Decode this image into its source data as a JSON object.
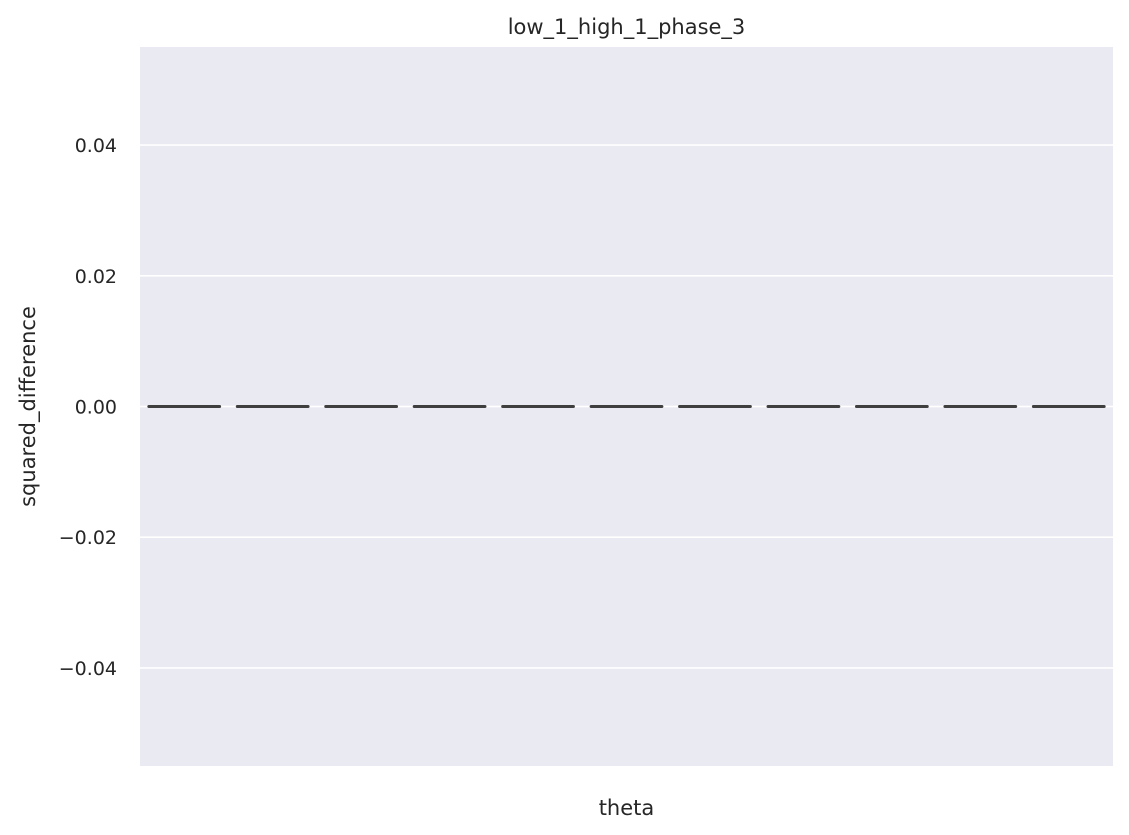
{
  "chart_data": {
    "type": "box",
    "title": "low_1_high_1_phase_3",
    "xlabel": "theta",
    "ylabel": "squared_difference",
    "ylim": [
      -0.055,
      0.055
    ],
    "yticks": [
      -0.04,
      -0.02,
      0.0,
      0.02,
      0.04
    ],
    "ytick_labels": [
      "−0.04",
      "−0.02",
      "0.00",
      "0.02",
      "0.04"
    ],
    "grid": true,
    "categories": [
      "",
      "",
      "",
      "",
      "",
      "",
      "",
      "",
      "",
      "",
      ""
    ],
    "boxes": [
      {
        "q1": 0,
        "median": 0,
        "q3": 0,
        "whisker_low": 0,
        "whisker_high": 0
      },
      {
        "q1": 0,
        "median": 0,
        "q3": 0,
        "whisker_low": 0,
        "whisker_high": 0
      },
      {
        "q1": 0,
        "median": 0,
        "q3": 0,
        "whisker_low": 0,
        "whisker_high": 0
      },
      {
        "q1": 0,
        "median": 0,
        "q3": 0,
        "whisker_low": 0,
        "whisker_high": 0
      },
      {
        "q1": 0,
        "median": 0,
        "q3": 0,
        "whisker_low": 0,
        "whisker_high": 0
      },
      {
        "q1": 0,
        "median": 0,
        "q3": 0,
        "whisker_low": 0,
        "whisker_high": 0
      },
      {
        "q1": 0,
        "median": 0,
        "q3": 0,
        "whisker_low": 0,
        "whisker_high": 0
      },
      {
        "q1": 0,
        "median": 0,
        "q3": 0,
        "whisker_low": 0,
        "whisker_high": 0
      },
      {
        "q1": 0,
        "median": 0,
        "q3": 0,
        "whisker_low": 0,
        "whisker_high": 0
      },
      {
        "q1": 0,
        "median": 0,
        "q3": 0,
        "whisker_low": 0,
        "whisker_high": 0
      },
      {
        "q1": 0,
        "median": 0,
        "q3": 0,
        "whisker_low": 0,
        "whisker_high": 0
      }
    ],
    "colors": {
      "plot_background": "#eaeaf2",
      "grid": "#ffffff",
      "box_line": "#3f3f3f"
    }
  }
}
